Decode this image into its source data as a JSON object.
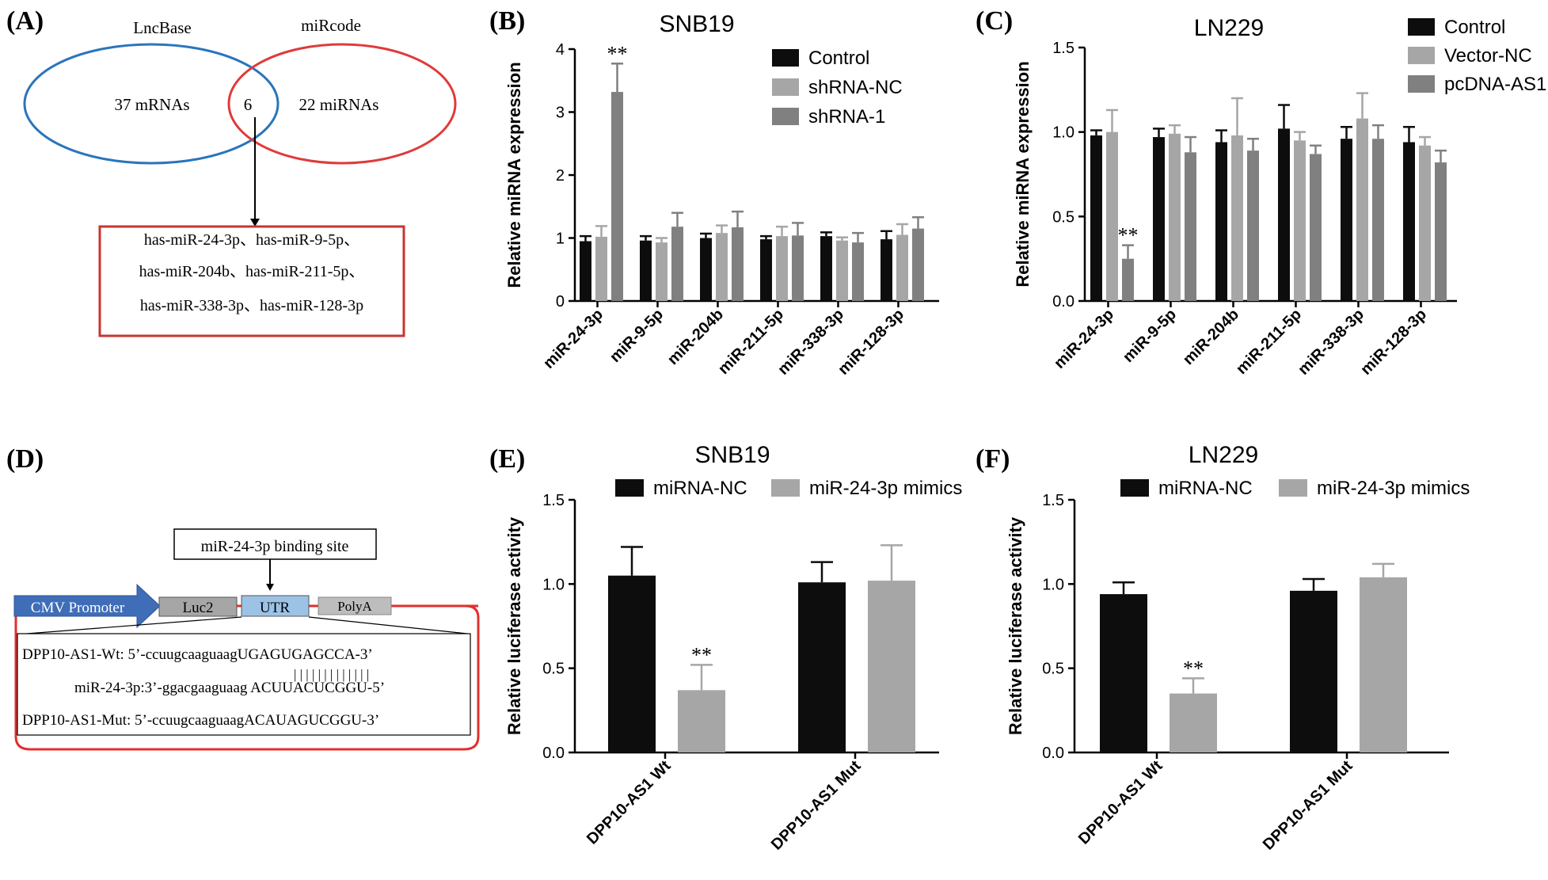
{
  "panels": {
    "A": {
      "label": "(A)",
      "set1_title": "LncBase",
      "set2_title": "miRcode",
      "set1_only": "37 mRNAs",
      "overlap": "6",
      "set2_only": "22 miRNAs",
      "result_lines": [
        "has-miR-24-3p、has-miR-9-5p、",
        "has-miR-204b、has-miR-211-5p、",
        "has-miR-338-3p、has-miR-128-3p"
      ],
      "colors": {
        "set1": "#2a75bb",
        "set2": "#e03a3a",
        "box": "#c8352f"
      }
    },
    "B": {
      "label": "(B)"
    },
    "C": {
      "label": "(C)"
    },
    "D": {
      "label": "(D)",
      "binding_site": "miR-24-3p binding site",
      "promoter": "CMV Promoter",
      "luc": "Luc2",
      "utr": "UTR",
      "polya": "PolyA",
      "wt_seq": "DPP10-AS1-Wt: 5’-ccuugcaaguaagUGAGUGAGCCA-3’",
      "pairing": "| | | | | | | | | | | | |",
      "mir_seq": "miR-24-3p:3’-ggacgaaguaag ACUUACUCGGU-5’",
      "mut_seq": "DPP10-AS1-Mut: 5’-ccuugcaaguaagACAUAGUCGGU-3’",
      "colors": {
        "promoter": "#3f6db8",
        "luc": "#a6a6a6",
        "utr": "#9cc3e6",
        "polya": "#bdbdbd",
        "line": "#e0302c"
      }
    },
    "E": {
      "label": "(E)"
    },
    "F": {
      "label": "(F)"
    }
  },
  "chart_data": [
    {
      "id": "B",
      "type": "bar",
      "title": "SNB19",
      "ylabel": "Relative miRNA expression",
      "xlabel": "",
      "ylim": [
        0,
        4
      ],
      "yticks": [
        "0",
        "1",
        "2",
        "3",
        "4"
      ],
      "categories": [
        "miR-24-3p",
        "miR-9-5p",
        "miR-204b",
        "miR-211-5p",
        "miR-338-3p",
        "miR-128-3p"
      ],
      "series": [
        {
          "name": "Control",
          "color": "#0d0d0d",
          "values": [
            0.95,
            0.96,
            1.0,
            0.98,
            1.03,
            0.98
          ],
          "errors": [
            0.08,
            0.07,
            0.07,
            0.05,
            0.06,
            0.13
          ]
        },
        {
          "name": "shRNA-NC",
          "color": "#a6a6a6",
          "values": [
            1.02,
            0.93,
            1.08,
            1.03,
            0.96,
            1.05
          ],
          "errors": [
            0.17,
            0.07,
            0.12,
            0.15,
            0.05,
            0.17
          ]
        },
        {
          "name": "shRNA-1",
          "color": "#808080",
          "values": [
            3.32,
            1.18,
            1.17,
            1.04,
            0.93,
            1.15
          ],
          "errors": [
            0.45,
            0.22,
            0.25,
            0.2,
            0.15,
            0.18
          ]
        }
      ],
      "annotations": [
        {
          "category": "miR-24-3p",
          "series": "shRNA-1",
          "text": "**"
        }
      ],
      "legend_position": "top-right"
    },
    {
      "id": "C",
      "type": "bar",
      "title": "LN229",
      "ylabel": "Relative miRNA expression",
      "xlabel": "",
      "ylim": [
        0,
        1.5
      ],
      "yticks": [
        "0.0",
        "0.5",
        "1.0",
        "1.5"
      ],
      "categories": [
        "miR-24-3p",
        "miR-9-5p",
        "miR-204b",
        "miR-211-5p",
        "miR-338-3p",
        "miR-128-3p"
      ],
      "series": [
        {
          "name": "Control",
          "color": "#0d0d0d",
          "values": [
            0.98,
            0.97,
            0.94,
            1.02,
            0.96,
            0.94
          ],
          "errors": [
            0.03,
            0.05,
            0.07,
            0.14,
            0.07,
            0.09
          ]
        },
        {
          "name": "Vector-NC",
          "color": "#a6a6a6",
          "values": [
            1.0,
            0.99,
            0.98,
            0.95,
            1.08,
            0.92
          ],
          "errors": [
            0.13,
            0.05,
            0.22,
            0.05,
            0.15,
            0.05
          ]
        },
        {
          "name": "pcDNA-AS1",
          "color": "#808080",
          "values": [
            0.25,
            0.88,
            0.89,
            0.87,
            0.96,
            0.82
          ],
          "errors": [
            0.08,
            0.09,
            0.07,
            0.05,
            0.08,
            0.07
          ]
        }
      ],
      "annotations": [
        {
          "category": "miR-24-3p",
          "series": "pcDNA-AS1",
          "text": "**"
        }
      ],
      "legend_position": "top-right"
    },
    {
      "id": "E",
      "type": "bar",
      "title": "SNB19",
      "ylabel": "Relative luciferase activity",
      "xlabel": "",
      "ylim": [
        0,
        1.5
      ],
      "yticks": [
        "0.0",
        "0.5",
        "1.0",
        "1.5"
      ],
      "categories": [
        "DPP10-AS1 Wt",
        "DPP10-AS1 Mut"
      ],
      "series": [
        {
          "name": "miRNA-NC",
          "color": "#0d0d0d",
          "values": [
            1.05,
            1.01
          ],
          "errors": [
            0.17,
            0.12
          ]
        },
        {
          "name": "miR-24-3p mimics",
          "color": "#a6a6a6",
          "values": [
            0.37,
            1.02
          ],
          "errors": [
            0.15,
            0.21
          ]
        }
      ],
      "annotations": [
        {
          "category": "DPP10-AS1 Wt",
          "series": "miR-24-3p mimics",
          "text": "**"
        }
      ],
      "legend_position": "top"
    },
    {
      "id": "F",
      "type": "bar",
      "title": "LN229",
      "ylabel": "Relative luciferase activity",
      "xlabel": "",
      "ylim": [
        0,
        1.5
      ],
      "yticks": [
        "0.0",
        "0.5",
        "1.0",
        "1.5"
      ],
      "categories": [
        "DPP10-AS1 Wt",
        "DPP10-AS1 Mut"
      ],
      "series": [
        {
          "name": "miRNA-NC",
          "color": "#0d0d0d",
          "values": [
            0.94,
            0.96
          ],
          "errors": [
            0.07,
            0.07
          ]
        },
        {
          "name": "miR-24-3p mimics",
          "color": "#a6a6a6",
          "values": [
            0.35,
            1.04
          ],
          "errors": [
            0.09,
            0.08
          ]
        }
      ],
      "annotations": [
        {
          "category": "DPP10-AS1 Wt",
          "series": "miR-24-3p mimics",
          "text": "**"
        }
      ],
      "legend_position": "top"
    }
  ]
}
